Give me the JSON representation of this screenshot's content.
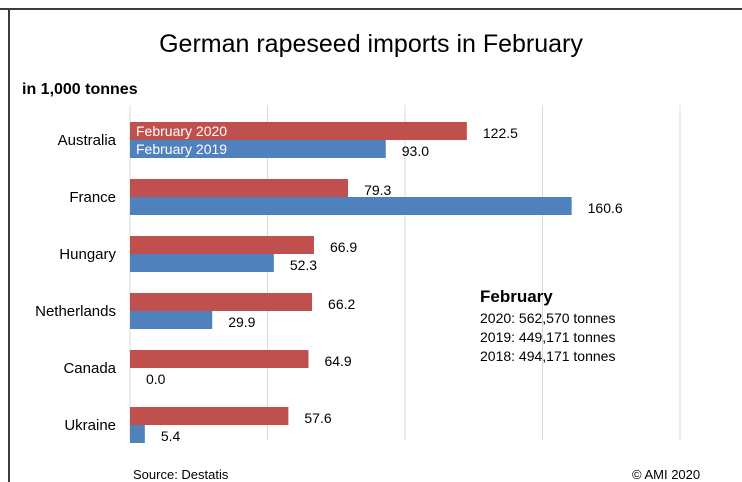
{
  "chart_data": {
    "type": "bar",
    "orientation": "horizontal",
    "title": "German rapeseed imports in February",
    "unit_label": "in 1,000 tonnes",
    "categories": [
      "Australia",
      "France",
      "Hungary",
      "Netherlands",
      "Canada",
      "Ukraine"
    ],
    "series": [
      {
        "name": "February 2020",
        "color": "#c0504d",
        "values": [
          122.5,
          79.3,
          66.9,
          66.2,
          64.9,
          57.6
        ]
      },
      {
        "name": "February 2019",
        "color": "#4f81bd",
        "values": [
          93.0,
          160.6,
          52.3,
          29.9,
          0.0,
          5.4
        ]
      }
    ],
    "data_labels": [
      [
        "122.5",
        "79.3",
        "66.9",
        "66.2",
        "64.9",
        "57.6"
      ],
      [
        "93.0",
        "160.6",
        "52.3",
        "29.9",
        "0.0",
        "5.4"
      ]
    ],
    "xlim": [
      0,
      200
    ],
    "x_gridlines": [
      0,
      50,
      100,
      150,
      200
    ],
    "grid": true,
    "legend": "inline labels on first category bars"
  },
  "note": {
    "title": "February",
    "lines": [
      "2020:  562,570  tonnes",
      "2019:  449,171  tonnes",
      "2018:  494,171  tonnes"
    ]
  },
  "footer": {
    "source": "Source:  Destatis",
    "copyright": "©  AMI 2020"
  }
}
